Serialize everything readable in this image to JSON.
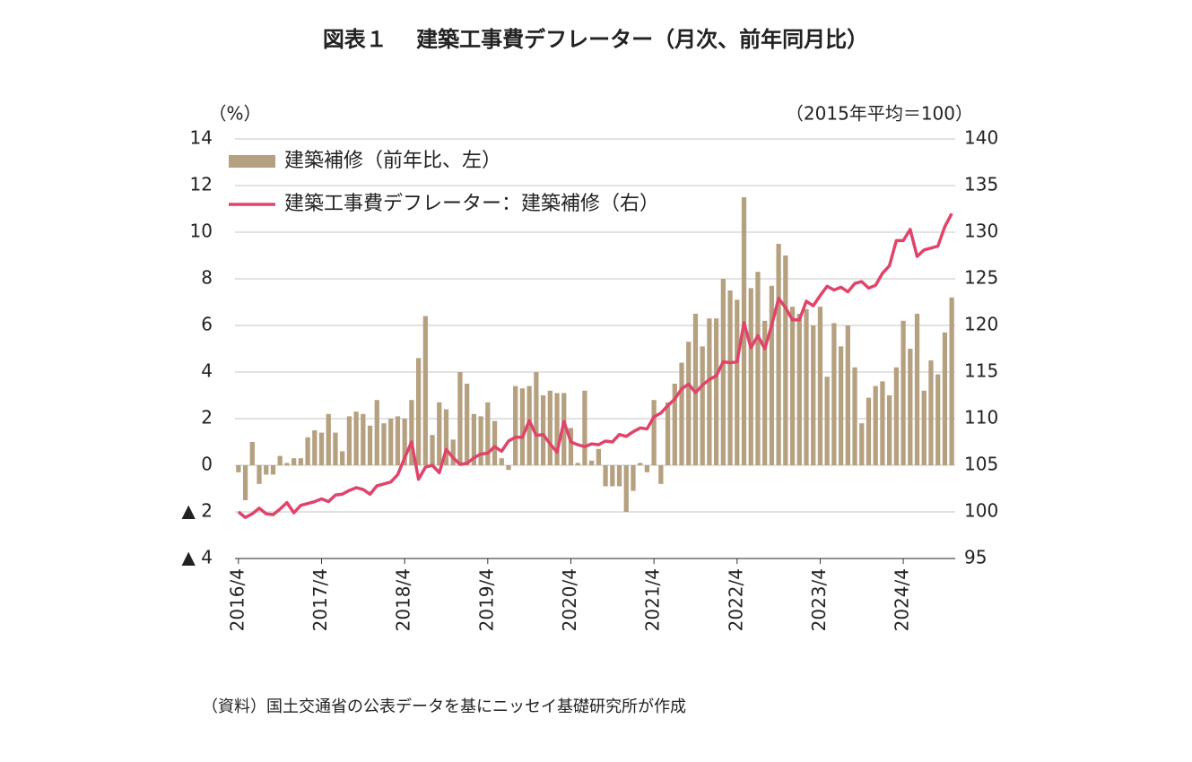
{
  "chart_data": {
    "type": "bar_line",
    "title": "図表１　 建築工事費デフレーター（月次、前年同月比）",
    "y_label": "（%）",
    "y2_label": "（2015年平均＝100）",
    "note": "（資料）国土交通省の公表データを基にニッセイ基礎研究所が作成",
    "ylim": [
      -4,
      14
    ],
    "yticks": [
      {
        "value": -4,
        "label": "▲ 4"
      },
      {
        "value": -2,
        "label": "▲ 2"
      },
      0,
      2,
      4,
      6,
      8,
      10,
      12,
      14
    ],
    "y2lim": [
      95,
      140
    ],
    "y2ticks": [
      95,
      100,
      105,
      110,
      115,
      120,
      125,
      130,
      135,
      140
    ],
    "grid": true,
    "legend": "upper left",
    "categories": [
      "2016/4",
      null,
      null,
      null,
      null,
      null,
      null,
      null,
      null,
      null,
      null,
      null,
      "2017/4",
      null,
      null,
      null,
      null,
      null,
      null,
      null,
      null,
      null,
      null,
      null,
      "2018/4",
      null,
      null,
      null,
      null,
      null,
      null,
      null,
      null,
      null,
      null,
      null,
      "2019/4",
      null,
      null,
      null,
      null,
      null,
      null,
      null,
      null,
      null,
      null,
      null,
      "2020/4",
      null,
      null,
      null,
      null,
      null,
      null,
      null,
      null,
      null,
      null,
      null,
      "2021/4",
      null,
      null,
      null,
      null,
      null,
      null,
      null,
      null,
      null,
      null,
      null,
      "2022/4",
      null,
      null,
      null,
      null,
      null,
      null,
      null,
      null,
      null,
      null,
      null,
      "2023/4",
      null,
      null,
      null,
      null,
      null,
      null,
      null,
      null,
      null,
      null,
      null,
      "2024/4",
      null,
      null,
      null,
      null,
      null,
      null,
      null
    ],
    "series": [
      {
        "name": "建築補修（前年比、左）",
        "type": "bar",
        "color": "#b5a07f",
        "values": [
          -0.3,
          -1.5,
          1.0,
          -0.8,
          -0.4,
          -0.4,
          0.4,
          0.1,
          0.3,
          0.3,
          1.2,
          1.5,
          1.4,
          2.2,
          1.4,
          0.6,
          2.1,
          2.3,
          2.2,
          1.7,
          2.8,
          1.8,
          2.0,
          2.1,
          2.0,
          2.8,
          4.6,
          6.4,
          1.3,
          2.7,
          2.4,
          1.1,
          4.0,
          3.5,
          2.2,
          2.1,
          2.7,
          1.9,
          0.3,
          -0.2,
          3.4,
          3.3,
          3.4,
          4.0,
          3.0,
          3.2,
          3.1,
          3.1,
          1.6,
          0.1,
          3.2,
          0.2,
          0.7,
          -0.9,
          -0.9,
          -0.9,
          -2.0,
          -1.1,
          0.1,
          -0.3,
          2.8,
          -0.8,
          2.7,
          3.5,
          4.4,
          5.3,
          6.5,
          5.1,
          6.3,
          6.3,
          8.0,
          7.5,
          7.1,
          11.5,
          7.6,
          8.3,
          6.2,
          7.7,
          9.5,
          9.0,
          6.8,
          6.5,
          6.7,
          6.0,
          6.8,
          3.8,
          6.1,
          5.1,
          6.0,
          4.2,
          1.8,
          2.9,
          3.4,
          3.6,
          3.0,
          4.2,
          6.2,
          5.0,
          6.5,
          3.2,
          4.5,
          3.9,
          5.7,
          7.2
        ]
      },
      {
        "name": "建築工事費デフレーター：建築補修（右）",
        "type": "line",
        "axis": "y2",
        "color": "#e0446a",
        "values": [
          100,
          99.4,
          99.8,
          100.4,
          99.8,
          99.7,
          100.3,
          101.0,
          99.9,
          100.7,
          100.9,
          101.1,
          101.4,
          101.1,
          101.8,
          101.9,
          102.3,
          102.6,
          102.4,
          101.9,
          102.8,
          103.0,
          103.2,
          104.0,
          105.8,
          107.5,
          103.5,
          104.8,
          105.0,
          104.2,
          106.7,
          105.8,
          105.1,
          105.2,
          105.8,
          106.2,
          106.3,
          107.0,
          106.5,
          107.6,
          108.0,
          108.0,
          109.8,
          108.2,
          108.3,
          107.3,
          106.4,
          109.7,
          107.5,
          107.2,
          107.0,
          107.3,
          107.2,
          107.6,
          107.5,
          108.3,
          108.1,
          108.6,
          109.0,
          108.9,
          110.2,
          110.6,
          111.4,
          112.1,
          113.2,
          113.7,
          112.8,
          113.6,
          114.2,
          114.6,
          116.1,
          116.0,
          116.1,
          120.3,
          117.6,
          118.9,
          117.5,
          120.0,
          122.9,
          121.9,
          120.6,
          120.6,
          122.6,
          122.1,
          123.2,
          124.2,
          123.8,
          124.1,
          123.6,
          124.5,
          124.7,
          124.0,
          124.3,
          125.6,
          126.4,
          129.1,
          129.1,
          130.3,
          127.4,
          128.1,
          128.3,
          128.5,
          130.6,
          132.0
        ]
      }
    ]
  }
}
